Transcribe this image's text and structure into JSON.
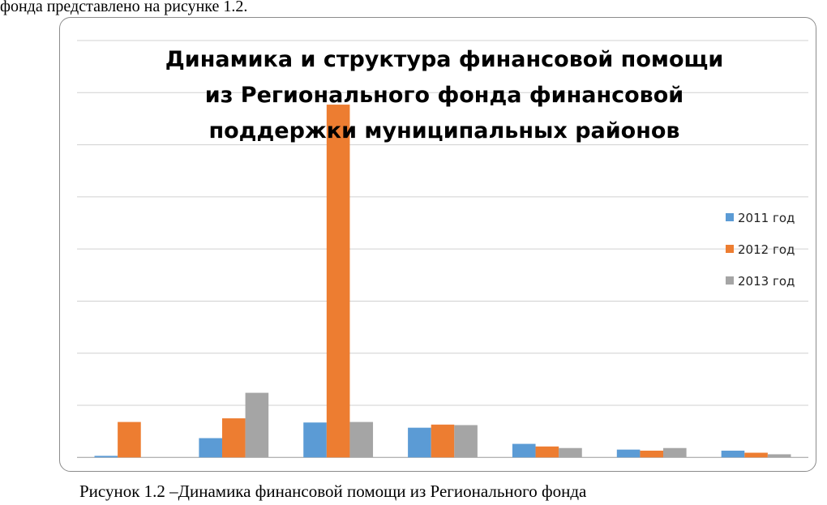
{
  "document": {
    "text_above": "фонда представлено на рисунке 1.2.",
    "caption": "Рисунок 1.2 –Динамика финансовой помощи из Регионального фонда"
  },
  "chart_data": {
    "type": "bar",
    "title_lines": [
      "Динамика и структура финансовой помощи",
      "из Регионального фонда финансовой",
      "поддержки муниципальных районов"
    ],
    "categories": [
      "",
      "",
      "",
      "",
      "",
      "",
      ""
    ],
    "series": [
      {
        "name": "2011 год",
        "color": "#5b9bd5",
        "values": [
          0.03,
          0.37,
          0.67,
          0.57,
          0.26,
          0.15,
          0.13
        ]
      },
      {
        "name": "2012 год",
        "color": "#ed7d31",
        "values": [
          0.68,
          0.75,
          6.77,
          0.63,
          0.21,
          0.13,
          0.09
        ]
      },
      {
        "name": "2013 год",
        "color": "#a5a5a5",
        "values": [
          0,
          1.24,
          0.68,
          0.62,
          0.18,
          0.18,
          0.06
        ]
      }
    ],
    "ylim": [
      0,
      8
    ],
    "y_tick_labels_shown": false,
    "grid": true,
    "legend": "right"
  }
}
